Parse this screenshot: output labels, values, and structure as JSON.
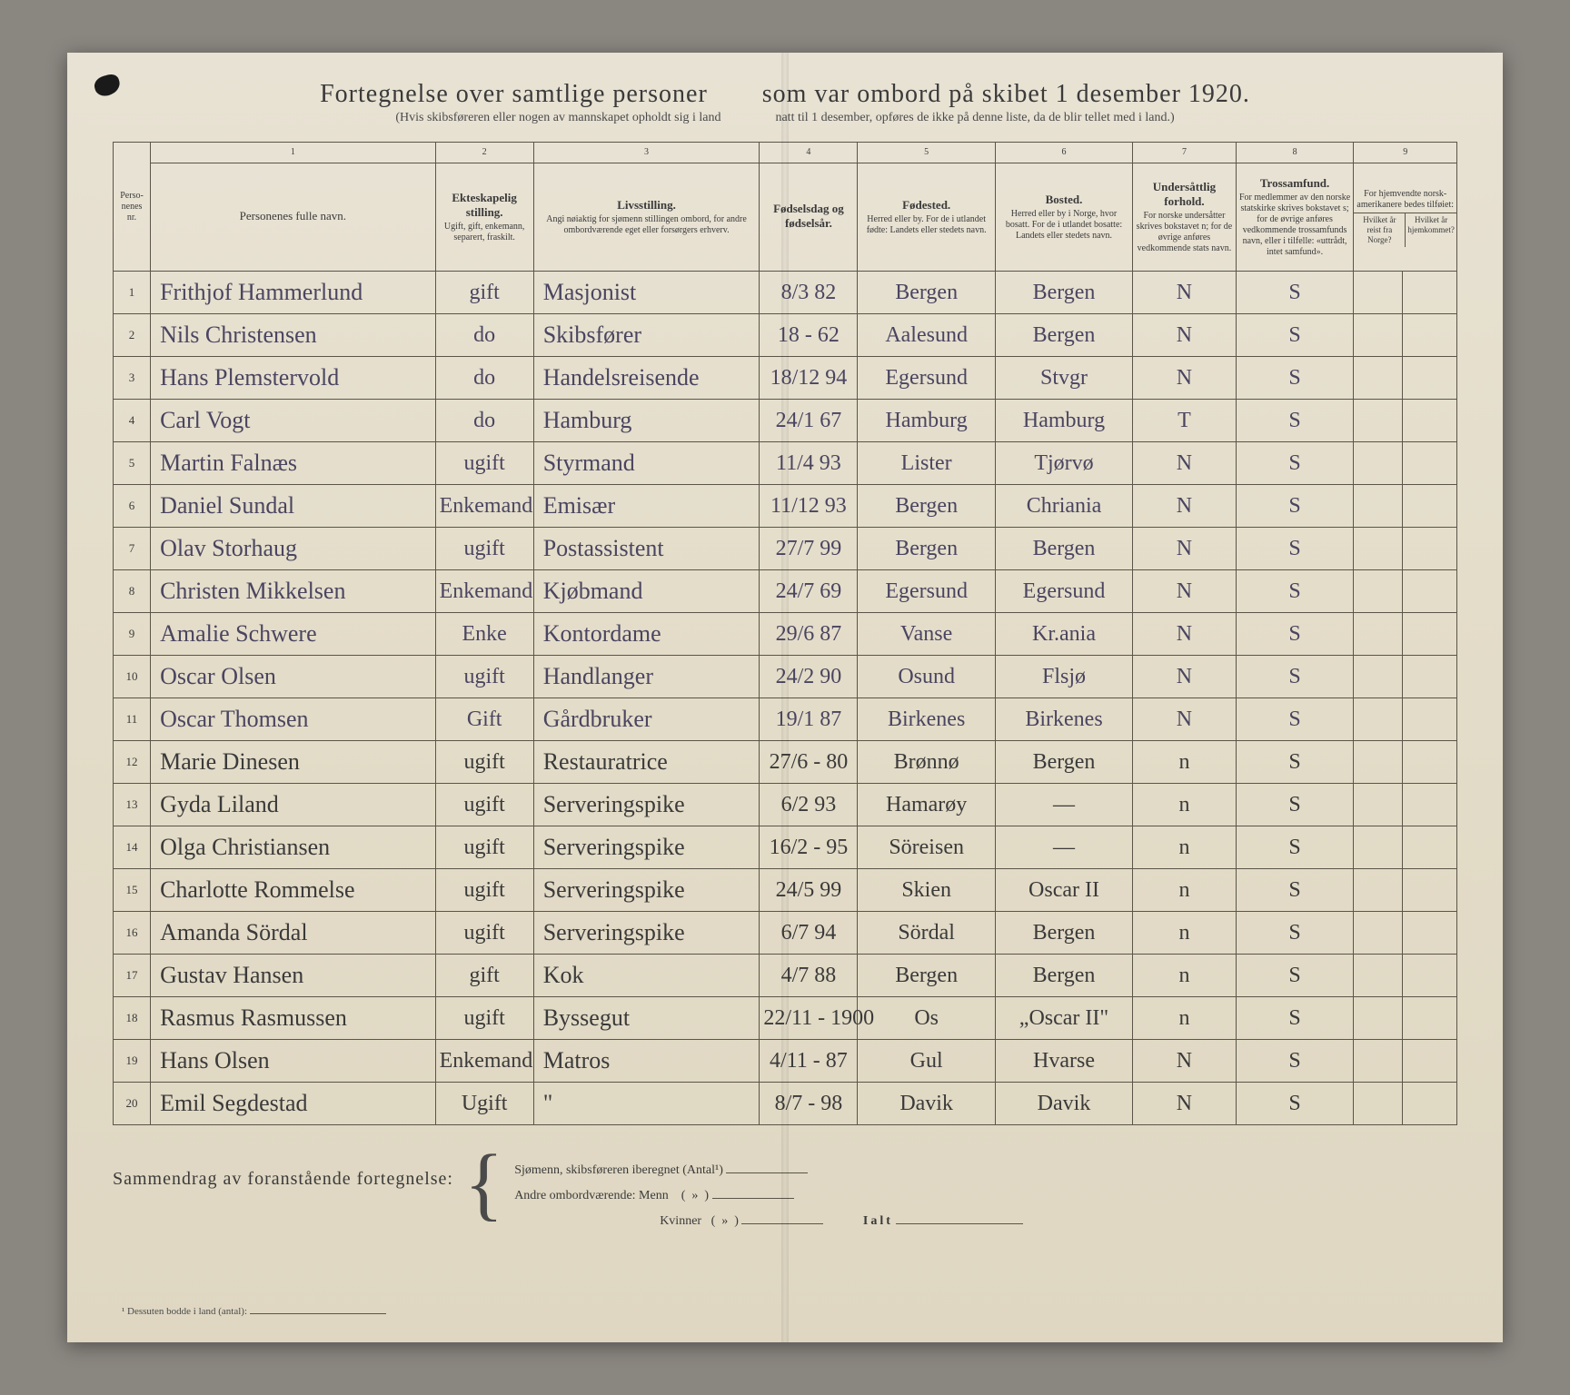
{
  "title_left": "Fortegnelse over samtlige personer",
  "title_right": "som var ombord på skibet 1 desember 1920.",
  "subtitle_left": "(Hvis skibsføreren eller nogen av mannskapet opholdt sig i land",
  "subtitle_right": "natt til 1 desember, opføres de ikke på denne liste, da de blir tellet med i land.)",
  "colnums": [
    "",
    "1",
    "2",
    "3",
    "4",
    "5",
    "6",
    "7",
    "8",
    "9"
  ],
  "headers": {
    "nr": "Perso-\nnenes\nnr.",
    "name": "Personenes fulle navn.",
    "ekt": "Ekteskapelig stilling.",
    "ekt_sub": "Ugift, gift, enkemann, separert, fraskilt.",
    "livs": "Livsstilling.",
    "livs_sub": "Angi nøiaktig for sjømenn stillingen ombord, for andre ombordværende eget eller forsørgers erhverv.",
    "fod": "Fødselsdag og fødselsår.",
    "fsted": "Fødested.",
    "fsted_sub": "Herred eller by. For de i utlandet fødte: Landets eller stedets navn.",
    "bost": "Bosted.",
    "bost_sub": "Herred eller by i Norge, hvor bosatt. For de i utlandet bosatte: Landets eller stedets navn.",
    "und": "Undersåttlig forhold.",
    "und_sub": "For norske undersåtter skrives bokstavet n; for de øvrige anføres vedkommende stats navn.",
    "tros": "Trossamfund.",
    "tros_sub": "For medlemmer av den norske statskirke skrives bokstavet s; for de øvrige anføres vedkommende trossamfunds navn, eller i tilfelle: «uttrådt, intet samfund».",
    "hj": "For hjemvendte norsk-amerikanere bedes tilføiet:",
    "hj1": "Hvilket år reist fra Norge?",
    "hj2": "Hvilket år hjemkommet?"
  },
  "rows": [
    {
      "nr": "1",
      "name": "Frithjof Hammerlund",
      "ekt": "gift",
      "livs": "Masjonist",
      "fod": "8/3 82",
      "fsted": "Bergen",
      "bost": "Bergen",
      "und": "N",
      "tros": "S"
    },
    {
      "nr": "2",
      "name": "Nils Christensen",
      "ekt": "do",
      "livs": "Skibsfører",
      "fod": "18 - 62",
      "fsted": "Aalesund",
      "bost": "Bergen",
      "und": "N",
      "tros": "S"
    },
    {
      "nr": "3",
      "name": "Hans Plemstervold",
      "ekt": "do",
      "livs": "Handelsreisende",
      "fod": "18/12 94",
      "fsted": "Egersund",
      "bost": "Stvgr",
      "und": "N",
      "tros": "S"
    },
    {
      "nr": "4",
      "name": "Carl Vogt",
      "ekt": "do",
      "livs": "Hamburg",
      "fod": "24/1 67",
      "fsted": "Hamburg",
      "bost": "Hamburg",
      "und": "T",
      "tros": "S"
    },
    {
      "nr": "5",
      "name": "Martin Falnæs",
      "ekt": "ugift",
      "livs": "Styrmand",
      "fod": "11/4 93",
      "fsted": "Lister",
      "bost": "Tjørvø",
      "und": "N",
      "tros": "S"
    },
    {
      "nr": "6",
      "name": "Daniel Sundal",
      "ekt": "Enkemand",
      "livs": "Emisær",
      "fod": "11/12 93",
      "fsted": "Bergen",
      "bost": "Chriania",
      "und": "N",
      "tros": "S"
    },
    {
      "nr": "7",
      "name": "Olav Storhaug",
      "ekt": "ugift",
      "livs": "Postassistent",
      "fod": "27/7 99",
      "fsted": "Bergen",
      "bost": "Bergen",
      "und": "N",
      "tros": "S"
    },
    {
      "nr": "8",
      "name": "Christen Mikkelsen",
      "ekt": "Enkemand",
      "livs": "Kjøbmand",
      "fod": "24/7 69",
      "fsted": "Egersund",
      "bost": "Egersund",
      "und": "N",
      "tros": "S"
    },
    {
      "nr": "9",
      "name": "Amalie Schwere",
      "ekt": "Enke",
      "livs": "Kontordame",
      "fod": "29/6 87",
      "fsted": "Vanse",
      "bost": "Kr.ania",
      "und": "N",
      "tros": "S"
    },
    {
      "nr": "10",
      "name": "Oscar Olsen",
      "ekt": "ugift",
      "livs": "Handlanger",
      "fod": "24/2 90",
      "fsted": "Osund",
      "bost": "Flsjø",
      "und": "N",
      "tros": "S"
    },
    {
      "nr": "11",
      "name": "Oscar Thomsen",
      "ekt": "Gift",
      "livs": "Gårdbruker",
      "fod": "19/1 87",
      "fsted": "Birkenes",
      "bost": "Birkenes",
      "und": "N",
      "tros": "S"
    },
    {
      "nr": "12",
      "name": "Marie Dinesen",
      "ekt": "ugift",
      "livs": "Restauratrice",
      "fod": "27/6 - 80",
      "fsted": "Brønnø",
      "bost": "Bergen",
      "und": "n",
      "tros": "S"
    },
    {
      "nr": "13",
      "name": "Gyda Liland",
      "ekt": "ugift",
      "livs": "Serveringspike",
      "fod": "6/2 93",
      "fsted": "Hamarøy",
      "bost": "—",
      "und": "n",
      "tros": "S"
    },
    {
      "nr": "14",
      "name": "Olga Christiansen",
      "ekt": "ugift",
      "livs": "Serveringspike",
      "fod": "16/2 - 95",
      "fsted": "Söreisen",
      "bost": "—",
      "und": "n",
      "tros": "S"
    },
    {
      "nr": "15",
      "name": "Charlotte Rommelse",
      "ekt": "ugift",
      "livs": "Serveringspike",
      "fod": "24/5 99",
      "fsted": "Skien",
      "bost": "Oscar II",
      "und": "n",
      "tros": "S"
    },
    {
      "nr": "16",
      "name": "Amanda Sördal",
      "ekt": "ugift",
      "livs": "Serveringspike",
      "fod": "6/7 94",
      "fsted": "Sördal",
      "bost": "Bergen",
      "und": "n",
      "tros": "S"
    },
    {
      "nr": "17",
      "name": "Gustav Hansen",
      "ekt": "gift",
      "livs": "Kok",
      "fod": "4/7 88",
      "fsted": "Bergen",
      "bost": "Bergen",
      "und": "n",
      "tros": "S"
    },
    {
      "nr": "18",
      "name": "Rasmus Rasmussen",
      "ekt": "ugift",
      "livs": "Byssegut",
      "fod": "22/11 - 1900",
      "fsted": "Os",
      "bost": "„Oscar II\"",
      "und": "n",
      "tros": "S"
    },
    {
      "nr": "19",
      "name": "Hans Olsen",
      "ekt": "Enkemand",
      "livs": "Matros",
      "fod": "4/11 - 87",
      "fsted": "Gul",
      "bost": "Hvarse",
      "und": "N",
      "tros": "S"
    },
    {
      "nr": "20",
      "name": "Emil Segdestad",
      "ekt": "Ugift",
      "livs": "\"",
      "fod": "8/7 - 98",
      "fsted": "Davik",
      "bost": "Davik",
      "und": "N",
      "tros": "S"
    }
  ],
  "summary_label": "Sammendrag av foranstående fortegnelse:",
  "summary_line1": "Sjømenn, skibsføreren iberegnet  (Antal¹)",
  "summary_line2": "Andre ombordværende: Menn",
  "summary_line3": "Kvinner",
  "ialt": "Ialt",
  "footnote": "¹  Dessuten bodde i land (antal):"
}
